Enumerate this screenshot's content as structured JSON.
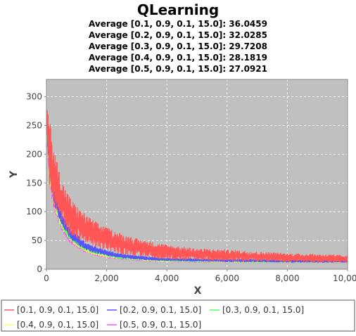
{
  "chart_data": {
    "type": "line",
    "title": "QLearning",
    "subtitles": [
      "Average [0.1, 0.9, 0.1, 15.0]: 36.0459",
      "Average [0.2, 0.9, 0.1, 15.0]: 32.0285",
      "Average [0.3, 0.9, 0.1, 15.0]: 29.7208",
      "Average [0.4, 0.9, 0.1, 15.0]: 28.1819",
      "Average [0.5, 0.9, 0.1, 15.0]: 27.0921"
    ],
    "xlabel": "X",
    "ylabel": "Y",
    "xlim": [
      0,
      10000
    ],
    "ylim": [
      0,
      330
    ],
    "xticks": [
      0,
      2000,
      4000,
      6000,
      8000,
      10000
    ],
    "xtick_labels": [
      "0",
      "2,000",
      "4,000",
      "6,000",
      "8,000",
      "10,000"
    ],
    "yticks": [
      0,
      50,
      100,
      150,
      200,
      250,
      300
    ],
    "ytick_labels": [
      "0",
      "50",
      "100",
      "150",
      "200",
      "250",
      "300"
    ],
    "grid": true,
    "plot_background": "#c0c0c0",
    "legend_position": "bottom",
    "x": [
      0,
      100,
      250,
      500,
      750,
      1000,
      1250,
      1500,
      2000,
      2500,
      3000,
      4000,
      5000,
      6000,
      7000,
      8000,
      9000,
      10000
    ],
    "series": [
      {
        "name": "[0.1, 0.9, 0.1, 15.0]",
        "color": "#ff5555",
        "values": [
          270,
          200,
          160,
          118,
          95,
          82,
          72,
          64,
          52,
          44,
          38,
          30,
          26,
          24,
          22,
          20,
          19,
          18
        ],
        "band": [
          8,
          50,
          40,
          30,
          26,
          22,
          20,
          18,
          16,
          14,
          12,
          10,
          8,
          8,
          7,
          6,
          6,
          5
        ]
      },
      {
        "name": "[0.2, 0.9, 0.1, 15.0]",
        "color": "#5555ff",
        "values": [
          260,
          180,
          130,
          88,
          65,
          52,
          42,
          36,
          28,
          23,
          20,
          17,
          16,
          15,
          15,
          14,
          14,
          14
        ],
        "band": [
          8,
          20,
          14,
          10,
          8,
          7,
          6,
          5,
          4,
          3,
          3,
          2,
          2,
          2,
          2,
          2,
          2,
          2
        ]
      },
      {
        "name": "[0.3, 0.9, 0.1, 15.0]",
        "color": "#55ff55",
        "values": [
          255,
          175,
          125,
          84,
          61,
          48,
          39,
          33,
          26,
          21,
          19,
          16,
          15,
          15,
          14,
          14,
          14,
          14
        ],
        "band": [
          8,
          18,
          12,
          9,
          7,
          6,
          5,
          4,
          3,
          3,
          2,
          2,
          2,
          2,
          2,
          2,
          2,
          2
        ]
      },
      {
        "name": "[0.4, 0.9, 0.1, 15.0]",
        "color": "#ffff55",
        "values": [
          250,
          170,
          120,
          80,
          58,
          45,
          37,
          31,
          24,
          20,
          18,
          15,
          15,
          14,
          14,
          14,
          14,
          14
        ],
        "band": [
          8,
          16,
          11,
          8,
          6,
          5,
          4,
          4,
          3,
          2,
          2,
          2,
          2,
          2,
          2,
          2,
          2,
          2
        ]
      },
      {
        "name": "[0.5, 0.9, 0.1, 15.0]",
        "color": "#ff55ff",
        "values": [
          245,
          165,
          115,
          77,
          55,
          43,
          35,
          29,
          23,
          19,
          17,
          15,
          14,
          14,
          14,
          14,
          14,
          14
        ],
        "band": [
          8,
          15,
          10,
          8,
          6,
          5,
          4,
          3,
          3,
          2,
          2,
          2,
          2,
          2,
          2,
          2,
          2,
          2
        ]
      }
    ]
  }
}
